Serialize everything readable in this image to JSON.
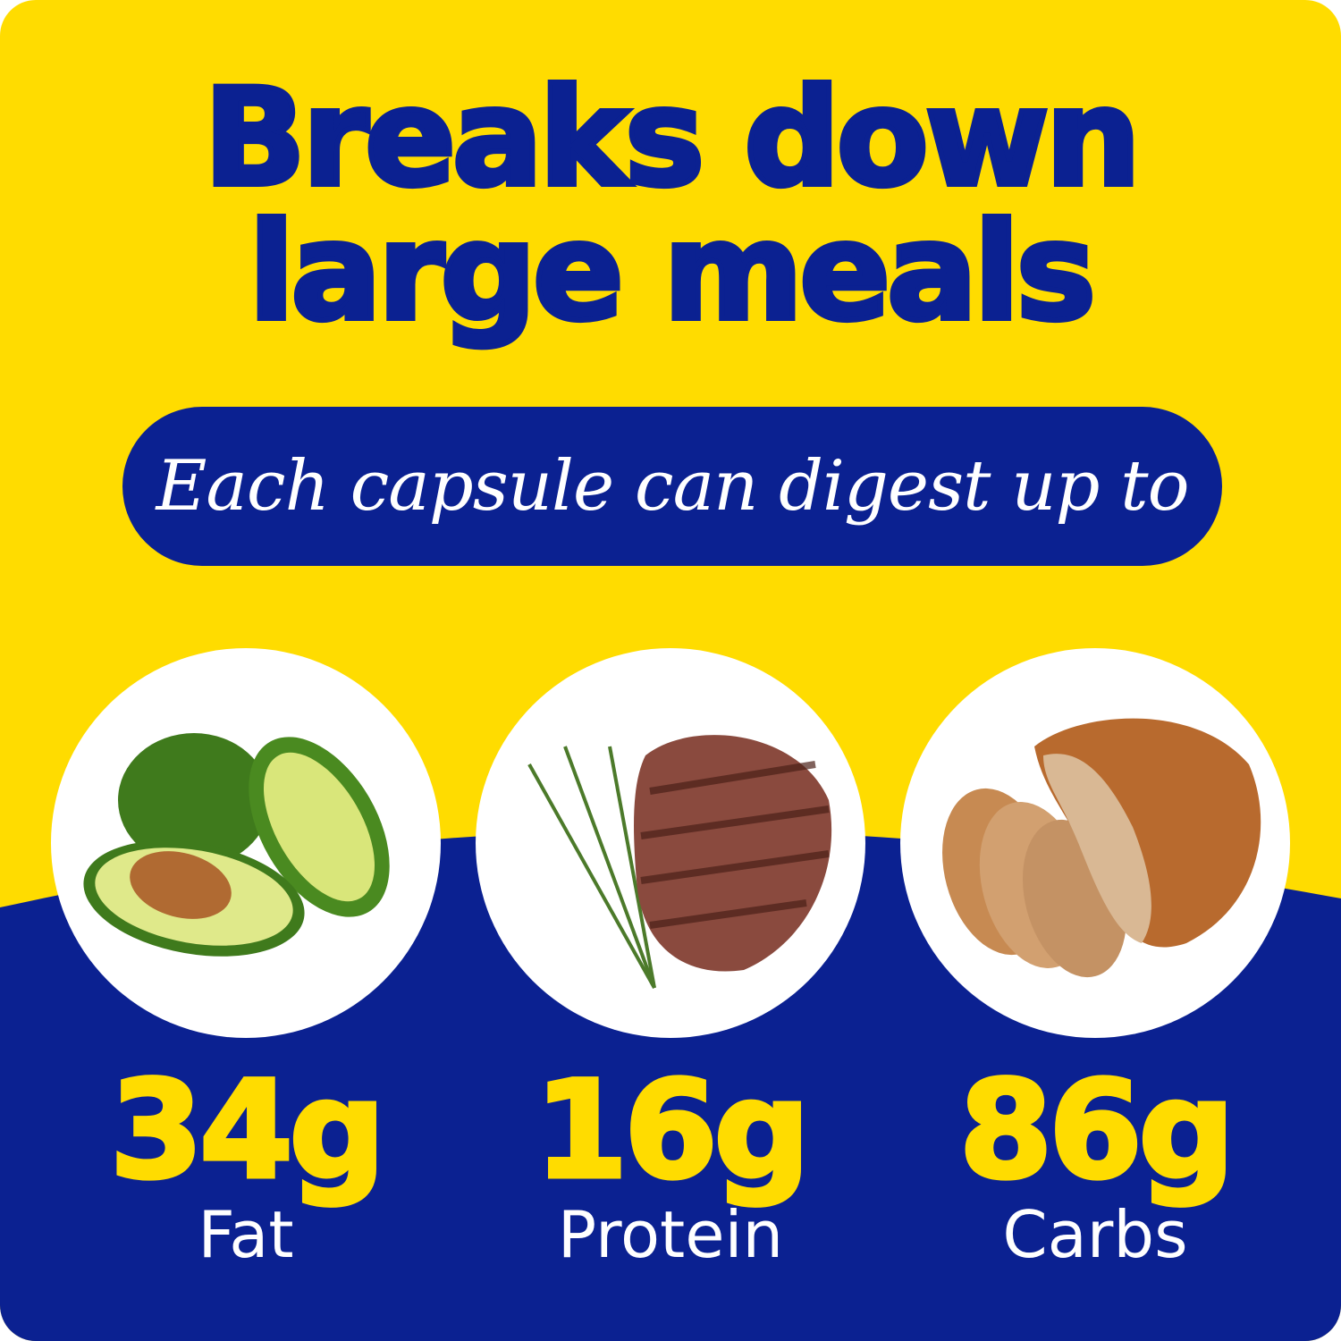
{
  "headline": {
    "line1": "Breaks down",
    "line2": "large meals"
  },
  "subhead": "Each capsule can digest up to",
  "nutrients": [
    {
      "amount": "34g",
      "label": "Fat",
      "image": "avocado"
    },
    {
      "amount": "16g",
      "label": "Protein",
      "image": "grilled-steak-with-rosemary"
    },
    {
      "amount": "86g",
      "label": "Carbs",
      "image": "sourdough-bread"
    }
  ],
  "colors": {
    "yellow": "#FFDC00",
    "blue": "#0B2191",
    "white": "#FFFFFF"
  }
}
